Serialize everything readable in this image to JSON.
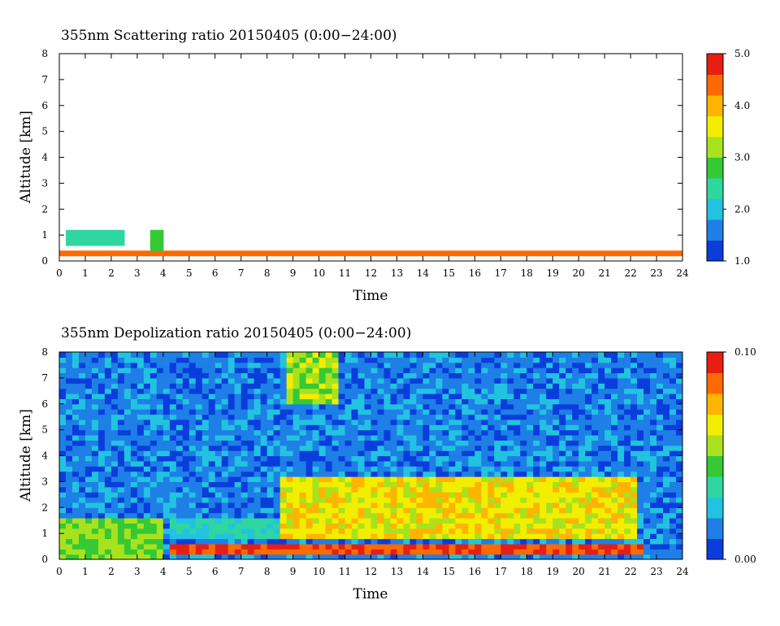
{
  "colors": {
    "colormap": [
      "#0a3ddc",
      "#1e7fe6",
      "#22c3e0",
      "#2fd6a0",
      "#35c935",
      "#a8e21f",
      "#f2ee00",
      "#ffb400",
      "#ff6a00",
      "#e81e12"
    ]
  },
  "chart_data": [
    {
      "type": "heatmap",
      "title": "355nm Scattering ratio  20150405 (0:00−24:00)",
      "xlabel": "Time",
      "ylabel": "Altitude [km]",
      "xlim": [
        0,
        24
      ],
      "ylim": [
        0,
        8
      ],
      "x_ticks": [
        "0",
        "1",
        "2",
        "3",
        "4",
        "5",
        "6",
        "7",
        "8",
        "9",
        "10",
        "11",
        "12",
        "13",
        "14",
        "15",
        "16",
        "17",
        "18",
        "19",
        "20",
        "21",
        "22",
        "23",
        "24"
      ],
      "y_ticks": [
        "0",
        "1",
        "2",
        "3",
        "4",
        "5",
        "6",
        "7",
        "8"
      ],
      "colorbar": {
        "range": [
          1.0,
          5.0
        ],
        "ticks": [
          "1.0",
          "2.0",
          "3.0",
          "4.0",
          "5.0"
        ]
      },
      "regions": [
        {
          "desc": "surface layer band",
          "t0": 0,
          "t1": 24,
          "z0": 0.25,
          "z1": 0.35,
          "value": 4.2
        },
        {
          "desc": "low cloud",
          "t0": 0.2,
          "t1": 2.5,
          "z0": 0.55,
          "z1": 1.15,
          "value": 2.3
        },
        {
          "desc": "low cloud",
          "t0": 3.4,
          "t1": 4.1,
          "z0": 0.5,
          "z1": 1.25,
          "value": 2.6
        }
      ]
    },
    {
      "type": "heatmap",
      "title": "355nm Depolization ratio  20150405 (0:00−24:00)",
      "xlabel": "Time",
      "ylabel": "Altitude [km]",
      "xlim": [
        0,
        24
      ],
      "ylim": [
        0,
        8
      ],
      "x_ticks": [
        "0",
        "1",
        "2",
        "3",
        "4",
        "5",
        "6",
        "7",
        "8",
        "9",
        "10",
        "11",
        "12",
        "13",
        "14",
        "15",
        "16",
        "17",
        "18",
        "19",
        "20",
        "21",
        "22",
        "23",
        "24"
      ],
      "y_ticks": [
        "0",
        "1",
        "2",
        "3",
        "4",
        "5",
        "6",
        "7",
        "8"
      ],
      "colorbar": {
        "range": [
          0.0,
          0.1
        ],
        "ticks": [
          "0.00",
          "0.10"
        ]
      },
      "regions": [
        {
          "desc": "background noise",
          "t0": 0,
          "t1": 24,
          "z0": 0,
          "z1": 8,
          "value": 0.015
        },
        {
          "desc": "dust layer",
          "t0": 8.6,
          "t1": 22.2,
          "z0": 0.8,
          "z1": 3.2,
          "value": 0.065
        },
        {
          "desc": "dust layer lower",
          "t0": 4.2,
          "t1": 8.6,
          "z0": 0.8,
          "z1": 1.6,
          "value": 0.03
        },
        {
          "desc": "boundary layer",
          "t0": 0,
          "t1": 4.0,
          "z0": 0,
          "z1": 1.6,
          "value": 0.05
        },
        {
          "desc": "high-altitude noise",
          "t0": 8.8,
          "t1": 10.8,
          "z0": 6.0,
          "z1": 8.0,
          "value": 0.055
        },
        {
          "desc": "surface band",
          "t0": 4.2,
          "t1": 22.5,
          "z0": 0.25,
          "z1": 0.55,
          "value": 0.09
        }
      ]
    }
  ]
}
